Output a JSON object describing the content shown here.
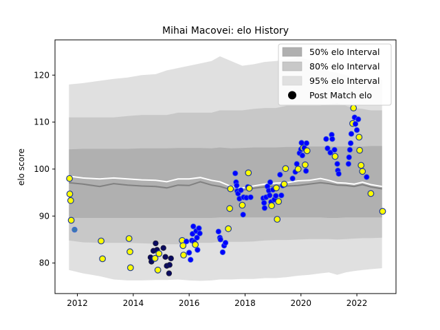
{
  "chart_data": {
    "type": "line",
    "title": "Mihai Macovei: elo History",
    "xlabel": "",
    "ylabel": "elo score",
    "xlim": [
      2011.2,
      2023.4
    ],
    "ylim": [
      73.5,
      127.5
    ],
    "x_ticks": [
      2012,
      2014,
      2016,
      2018,
      2020,
      2022
    ],
    "y_ticks": [
      80,
      90,
      100,
      110,
      120
    ],
    "x_tick_labels": [
      "2012",
      "2014",
      "2016",
      "2018",
      "2020",
      "2022"
    ],
    "y_tick_labels": [
      "80",
      "90",
      "100",
      "110",
      "120"
    ],
    "grid": false,
    "legend_position": "top-right",
    "legend": [
      {
        "label": "50% elo Interval",
        "kind": "band",
        "color": "#b0b0b0"
      },
      {
        "label": "80% elo Interval",
        "kind": "band",
        "color": "#c8c8c8"
      },
      {
        "label": "95% elo Interval",
        "kind": "band",
        "color": "#e0e0e0"
      },
      {
        "label": "Post Match elo",
        "kind": "marker",
        "color": "#000000"
      }
    ],
    "colors": {
      "band50": "#b0b0b0",
      "band80": "#c8c8c8",
      "band95": "#e0e0e0",
      "median_line": "#808080",
      "mean_line": "#ffffff",
      "win_fill": "#ffff00",
      "loss_fill": "#0000ff",
      "dark_fill": "#0a0a60",
      "marker_edge": "#1f3a93"
    },
    "bands": {
      "x": [
        2011.7,
        2012.2,
        2012.8,
        2013.3,
        2013.8,
        2014.3,
        2014.8,
        2015.2,
        2015.6,
        2016.0,
        2016.4,
        2016.8,
        2017.1,
        2017.5,
        2017.9,
        2018.3,
        2018.7,
        2019.1,
        2019.5,
        2019.9,
        2020.3,
        2020.7,
        2021.0,
        2021.3,
        2021.6,
        2021.9,
        2022.2,
        2022.5,
        2022.9
      ],
      "p95_low": [
        78.5,
        77.8,
        77.2,
        76.5,
        76.3,
        76.3,
        76.4,
        76.4,
        76.5,
        76.3,
        76.2,
        76.3,
        76.5,
        76.5,
        76.6,
        76.6,
        76.8,
        76.8,
        77.0,
        77.3,
        77.5,
        77.8,
        78.0,
        77.5,
        78.0,
        78.3,
        78.5,
        78.7,
        78.9
      ],
      "p80_low": [
        84.8,
        84.4,
        84.3,
        84.3,
        84.3,
        84.2,
        84.1,
        84.0,
        84.0,
        84.2,
        84.3,
        84.3,
        84.5,
        84.5,
        84.5,
        84.6,
        84.8,
        84.9,
        84.9,
        85.0,
        85.1,
        85.1,
        85.1,
        85.0,
        85.1,
        85.2,
        85.3,
        85.3,
        85.4
      ],
      "p50_low": [
        89.6,
        89.6,
        89.6,
        89.6,
        89.6,
        89.6,
        89.6,
        89.6,
        89.6,
        89.6,
        89.6,
        89.6,
        89.7,
        89.7,
        89.7,
        89.7,
        89.7,
        89.7,
        89.7,
        89.7,
        89.7,
        89.7,
        89.6,
        89.6,
        89.7,
        89.7,
        89.7,
        89.7,
        89.7
      ],
      "p50_high": [
        104.2,
        104.3,
        104.3,
        104.3,
        104.3,
        104.4,
        104.4,
        104.4,
        104.5,
        104.5,
        104.5,
        104.4,
        104.6,
        104.4,
        104.5,
        104.6,
        104.6,
        104.6,
        104.7,
        104.7,
        104.8,
        104.8,
        104.8,
        104.8,
        104.8,
        104.8,
        104.8,
        104.9,
        104.9
      ],
      "p80_high": [
        111.0,
        111.0,
        111.0,
        111.0,
        111.3,
        111.5,
        111.5,
        111.5,
        112.0,
        112.0,
        112.0,
        112.0,
        112.5,
        112.5,
        112.5,
        112.8,
        113.0,
        113.0,
        113.5,
        113.5,
        113.5,
        113.5,
        113.8,
        114.0,
        113.5,
        113.0,
        112.8,
        112.5,
        112.5
      ],
      "p95_high": [
        118.0,
        118.3,
        118.8,
        119.2,
        119.5,
        120.0,
        120.2,
        121.0,
        121.5,
        122.0,
        122.5,
        123.0,
        124.0,
        123.0,
        122.0,
        122.3,
        122.8,
        123.0,
        123.3,
        123.8,
        123.2,
        122.0,
        120.8,
        120.5,
        120.0,
        119.5,
        119.3,
        119.2,
        119.0
      ],
      "median": [
        97.1,
        96.8,
        96.3,
        96.9,
        96.6,
        96.4,
        96.3,
        96.0,
        96.6,
        96.5,
        97.3,
        96.6,
        96.3,
        95.6,
        95.5,
        95.9,
        96.2,
        96.4,
        96.4,
        96.5,
        96.8,
        97.1,
        96.9,
        96.6,
        96.5,
        96.3,
        96.7,
        96.2,
        95.8
      ],
      "mean": [
        98.5,
        98.1,
        97.9,
        98.1,
        97.9,
        97.7,
        97.6,
        97.3,
        97.9,
        97.9,
        98.2,
        97.6,
        97.3,
        96.3,
        96.0,
        96.4,
        96.8,
        97.0,
        97.1,
        97.5,
        97.6,
        98.0,
        97.6,
        97.1,
        97.0,
        96.8,
        97.2,
        96.7,
        96.3
      ]
    },
    "series": [
      {
        "name": "Post Match elo",
        "points": [
          {
            "x": 2011.72,
            "y": 98.0,
            "c": "win"
          },
          {
            "x": 2011.73,
            "y": 94.7,
            "c": "win"
          },
          {
            "x": 2011.76,
            "y": 93.3,
            "c": "win"
          },
          {
            "x": 2011.78,
            "y": 89.1,
            "c": "win"
          },
          {
            "x": 2011.9,
            "y": 87.1,
            "c": "teal"
          },
          {
            "x": 2012.85,
            "y": 84.7,
            "c": "win"
          },
          {
            "x": 2012.9,
            "y": 80.9,
            "c": "win"
          },
          {
            "x": 2013.85,
            "y": 85.2,
            "c": "win"
          },
          {
            "x": 2013.88,
            "y": 82.4,
            "c": "win"
          },
          {
            "x": 2013.9,
            "y": 79.0,
            "c": "win"
          },
          {
            "x": 2014.62,
            "y": 81.2,
            "c": "dark"
          },
          {
            "x": 2014.65,
            "y": 80.3,
            "c": "dark"
          },
          {
            "x": 2014.72,
            "y": 82.6,
            "c": "dark"
          },
          {
            "x": 2014.78,
            "y": 81.0,
            "c": "win"
          },
          {
            "x": 2014.8,
            "y": 84.2,
            "c": "dark"
          },
          {
            "x": 2014.85,
            "y": 82.8,
            "c": "dark"
          },
          {
            "x": 2014.88,
            "y": 78.5,
            "c": "win"
          },
          {
            "x": 2014.92,
            "y": 82.0,
            "c": "win"
          },
          {
            "x": 2015.08,
            "y": 83.2,
            "c": "dark"
          },
          {
            "x": 2015.15,
            "y": 81.3,
            "c": "dark"
          },
          {
            "x": 2015.2,
            "y": 79.4,
            "c": "dark"
          },
          {
            "x": 2015.28,
            "y": 77.8,
            "c": "dark"
          },
          {
            "x": 2015.3,
            "y": 79.6,
            "c": "dark"
          },
          {
            "x": 2015.35,
            "y": 81.0,
            "c": "dark"
          },
          {
            "x": 2015.75,
            "y": 84.8,
            "c": "win"
          },
          {
            "x": 2015.78,
            "y": 83.7,
            "c": "win"
          },
          {
            "x": 2015.8,
            "y": 81.7,
            "c": "win"
          },
          {
            "x": 2015.9,
            "y": 84.6,
            "c": "loss"
          },
          {
            "x": 2016.0,
            "y": 82.2,
            "c": "loss"
          },
          {
            "x": 2016.05,
            "y": 80.7,
            "c": "loss"
          },
          {
            "x": 2016.1,
            "y": 84.8,
            "c": "loss"
          },
          {
            "x": 2016.12,
            "y": 86.2,
            "c": "loss"
          },
          {
            "x": 2016.15,
            "y": 87.8,
            "c": "loss"
          },
          {
            "x": 2016.18,
            "y": 84.5,
            "c": "loss"
          },
          {
            "x": 2016.22,
            "y": 83.9,
            "c": "win"
          },
          {
            "x": 2016.25,
            "y": 86.8,
            "c": "loss"
          },
          {
            "x": 2016.28,
            "y": 85.4,
            "c": "loss"
          },
          {
            "x": 2016.3,
            "y": 82.8,
            "c": "loss"
          },
          {
            "x": 2016.35,
            "y": 87.4,
            "c": "loss"
          },
          {
            "x": 2016.38,
            "y": 86.3,
            "c": "loss"
          },
          {
            "x": 2017.05,
            "y": 86.7,
            "c": "loss"
          },
          {
            "x": 2017.1,
            "y": 85.4,
            "c": "loss"
          },
          {
            "x": 2017.12,
            "y": 85.0,
            "c": "loss"
          },
          {
            "x": 2017.2,
            "y": 82.3,
            "c": "loss"
          },
          {
            "x": 2017.25,
            "y": 83.7,
            "c": "loss"
          },
          {
            "x": 2017.3,
            "y": 84.3,
            "c": "loss"
          },
          {
            "x": 2017.4,
            "y": 87.3,
            "c": "win"
          },
          {
            "x": 2017.45,
            "y": 91.6,
            "c": "win"
          },
          {
            "x": 2017.48,
            "y": 95.8,
            "c": "win"
          },
          {
            "x": 2017.65,
            "y": 99.1,
            "c": "loss"
          },
          {
            "x": 2017.68,
            "y": 97.2,
            "c": "loss"
          },
          {
            "x": 2017.7,
            "y": 96.5,
            "c": "loss"
          },
          {
            "x": 2017.72,
            "y": 95.3,
            "c": "loss"
          },
          {
            "x": 2017.75,
            "y": 94.8,
            "c": "loss"
          },
          {
            "x": 2017.8,
            "y": 93.7,
            "c": "loss"
          },
          {
            "x": 2017.85,
            "y": 95.5,
            "c": "loss"
          },
          {
            "x": 2017.9,
            "y": 92.3,
            "c": "win"
          },
          {
            "x": 2017.93,
            "y": 90.3,
            "c": "loss"
          },
          {
            "x": 2017.95,
            "y": 94.0,
            "c": "loss"
          },
          {
            "x": 2018.05,
            "y": 93.9,
            "c": "loss"
          },
          {
            "x": 2018.1,
            "y": 96.2,
            "c": "loss"
          },
          {
            "x": 2018.12,
            "y": 99.2,
            "c": "win"
          },
          {
            "x": 2018.15,
            "y": 95.9,
            "c": "win"
          },
          {
            "x": 2018.2,
            "y": 94.0,
            "c": "loss"
          },
          {
            "x": 2018.65,
            "y": 93.8,
            "c": "loss"
          },
          {
            "x": 2018.68,
            "y": 92.8,
            "c": "loss"
          },
          {
            "x": 2018.7,
            "y": 91.7,
            "c": "loss"
          },
          {
            "x": 2018.75,
            "y": 94.0,
            "c": "loss"
          },
          {
            "x": 2018.8,
            "y": 96.3,
            "c": "loss"
          },
          {
            "x": 2018.85,
            "y": 95.4,
            "c": "loss"
          },
          {
            "x": 2018.88,
            "y": 94.4,
            "c": "loss"
          },
          {
            "x": 2018.9,
            "y": 97.2,
            "c": "loss"
          },
          {
            "x": 2018.93,
            "y": 93.0,
            "c": "loss"
          },
          {
            "x": 2018.95,
            "y": 92.2,
            "c": "win"
          },
          {
            "x": 2019.0,
            "y": 95.6,
            "c": "loss"
          },
          {
            "x": 2019.05,
            "y": 93.5,
            "c": "loss"
          },
          {
            "x": 2019.1,
            "y": 94.3,
            "c": "loss"
          },
          {
            "x": 2019.12,
            "y": 96.0,
            "c": "win"
          },
          {
            "x": 2019.15,
            "y": 89.3,
            "c": "win"
          },
          {
            "x": 2019.2,
            "y": 93.1,
            "c": "win"
          },
          {
            "x": 2019.25,
            "y": 98.8,
            "c": "loss"
          },
          {
            "x": 2019.3,
            "y": 94.4,
            "c": "loss"
          },
          {
            "x": 2019.35,
            "y": 96.5,
            "c": "loss"
          },
          {
            "x": 2019.4,
            "y": 96.8,
            "c": "win"
          },
          {
            "x": 2019.45,
            "y": 100.1,
            "c": "win"
          },
          {
            "x": 2019.7,
            "y": 98.0,
            "c": "loss"
          },
          {
            "x": 2019.8,
            "y": 99.4,
            "c": "loss"
          },
          {
            "x": 2019.85,
            "y": 101.1,
            "c": "loss"
          },
          {
            "x": 2019.9,
            "y": 100.0,
            "c": "win"
          },
          {
            "x": 2019.95,
            "y": 103.4,
            "c": "loss"
          },
          {
            "x": 2020.0,
            "y": 104.2,
            "c": "loss"
          },
          {
            "x": 2020.02,
            "y": 105.6,
            "c": "loss"
          },
          {
            "x": 2020.05,
            "y": 102.9,
            "c": "loss"
          },
          {
            "x": 2020.08,
            "y": 104.5,
            "c": "win"
          },
          {
            "x": 2020.12,
            "y": 104.5,
            "c": "loss"
          },
          {
            "x": 2020.15,
            "y": 100.9,
            "c": "win"
          },
          {
            "x": 2020.18,
            "y": 99.6,
            "c": "loss"
          },
          {
            "x": 2020.2,
            "y": 105.5,
            "c": "loss"
          },
          {
            "x": 2020.22,
            "y": 103.9,
            "c": "win"
          },
          {
            "x": 2020.9,
            "y": 106.4,
            "c": "loss"
          },
          {
            "x": 2020.95,
            "y": 104.4,
            "c": "loss"
          },
          {
            "x": 2021.05,
            "y": 103.5,
            "c": "loss"
          },
          {
            "x": 2021.1,
            "y": 107.3,
            "c": "loss"
          },
          {
            "x": 2021.12,
            "y": 106.4,
            "c": "loss"
          },
          {
            "x": 2021.2,
            "y": 104.1,
            "c": "loss"
          },
          {
            "x": 2021.22,
            "y": 102.7,
            "c": "win"
          },
          {
            "x": 2021.3,
            "y": 101.1,
            "c": "loss"
          },
          {
            "x": 2021.32,
            "y": 99.7,
            "c": "loss"
          },
          {
            "x": 2021.35,
            "y": 99.0,
            "c": "loss"
          },
          {
            "x": 2021.7,
            "y": 101.1,
            "c": "loss"
          },
          {
            "x": 2021.72,
            "y": 102.5,
            "c": "loss"
          },
          {
            "x": 2021.75,
            "y": 104.1,
            "c": "loss"
          },
          {
            "x": 2021.78,
            "y": 105.5,
            "c": "loss"
          },
          {
            "x": 2021.8,
            "y": 107.5,
            "c": "loss"
          },
          {
            "x": 2021.85,
            "y": 109.7,
            "c": "win"
          },
          {
            "x": 2021.88,
            "y": 113.0,
            "c": "win"
          },
          {
            "x": 2021.92,
            "y": 111.0,
            "c": "loss"
          },
          {
            "x": 2021.95,
            "y": 109.6,
            "c": "loss"
          },
          {
            "x": 2022.0,
            "y": 108.3,
            "c": "loss"
          },
          {
            "x": 2022.05,
            "y": 110.6,
            "c": "loss"
          },
          {
            "x": 2022.08,
            "y": 106.8,
            "c": "win"
          },
          {
            "x": 2022.1,
            "y": 104.0,
            "c": "win"
          },
          {
            "x": 2022.15,
            "y": 100.8,
            "c": "win"
          },
          {
            "x": 2022.2,
            "y": 99.5,
            "c": "win"
          },
          {
            "x": 2022.35,
            "y": 98.3,
            "c": "loss"
          },
          {
            "x": 2022.5,
            "y": 94.8,
            "c": "win"
          },
          {
            "x": 2022.92,
            "y": 91.0,
            "c": "win"
          }
        ]
      }
    ]
  }
}
